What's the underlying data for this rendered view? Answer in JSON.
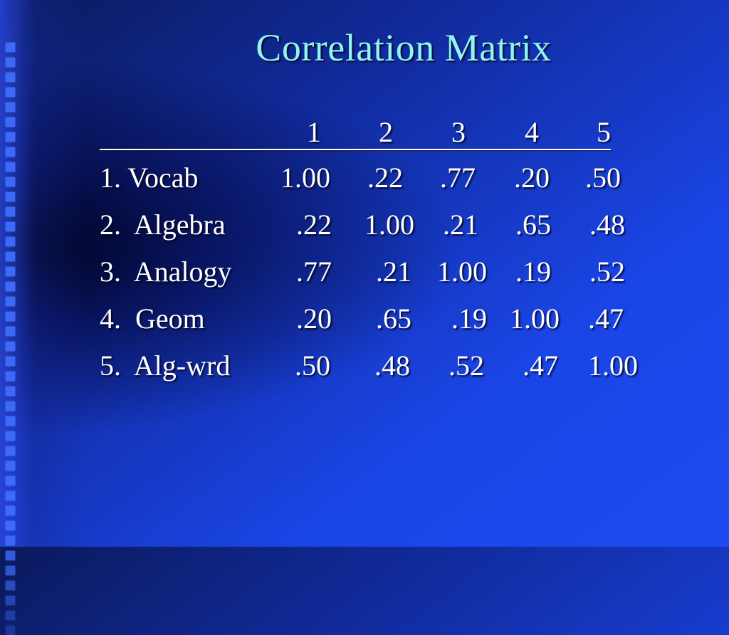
{
  "slide": {
    "title": "Correlation Matrix"
  },
  "matrix": {
    "columns": [
      "1",
      "2",
      "3",
      "4",
      "5"
    ],
    "rows": [
      {
        "label": "1. Vocab",
        "values": [
          "1.00",
          ".22",
          ".77",
          ".20",
          ".50"
        ]
      },
      {
        "label": "2.  Algebra",
        "values": [
          ".22",
          "1.00",
          ".21",
          ".65",
          ".48"
        ]
      },
      {
        "label": "3.  Analogy",
        "values": [
          ".77",
          ".21",
          "1.00",
          ".19",
          ".52"
        ]
      },
      {
        "label": "4.  Geom",
        "values": [
          ".20",
          ".65",
          ".19",
          "1.00",
          ".47"
        ]
      },
      {
        "label": "5.  Alg-wrd",
        "values": [
          ".50",
          ".48",
          ".52",
          ".47",
          "1.00"
        ]
      }
    ]
  },
  "colors": {
    "title": "#8ff5f0",
    "text": "#ffffff",
    "background": "#1a45e6"
  }
}
